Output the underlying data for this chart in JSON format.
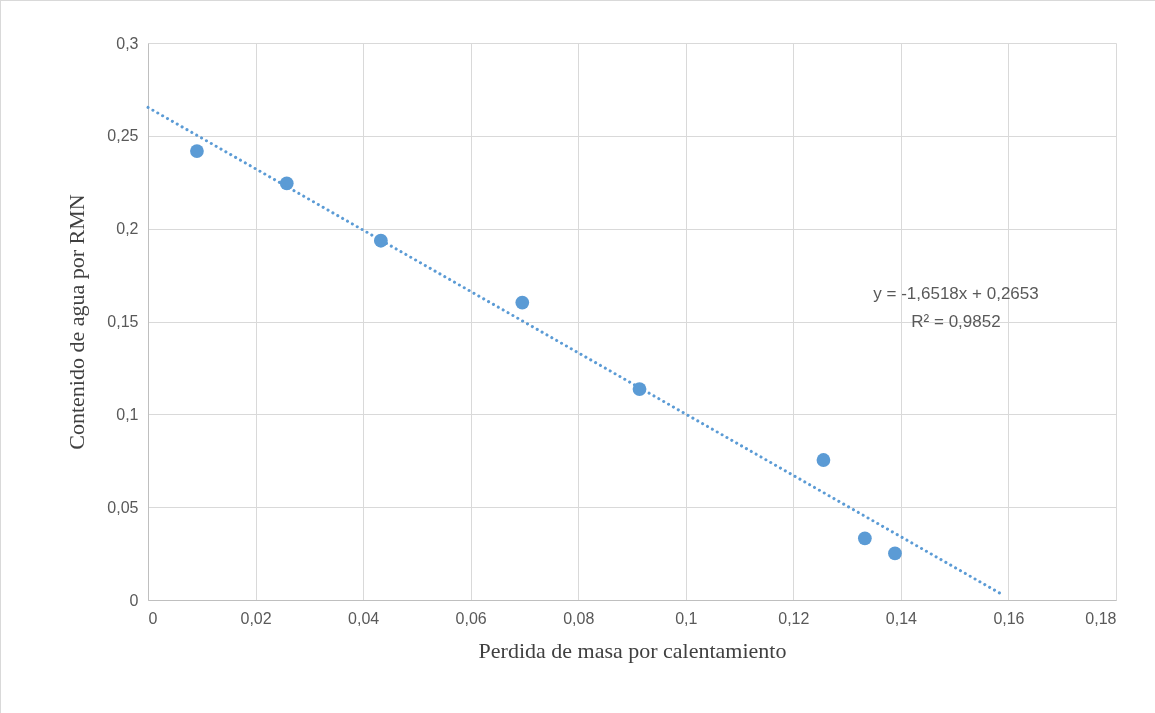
{
  "chart_data": {
    "type": "scatter",
    "xlabel": "Perdida de masa por calentamiento",
    "ylabel": "Contenido de agua por RMN",
    "xlim": [
      0,
      0.18
    ],
    "xticks": [
      0,
      {
        "value": 0.02,
        "label": "0,02"
      },
      {
        "value": 0.04,
        "label": "0,04"
      },
      {
        "value": 0.06,
        "label": "0,06"
      },
      {
        "value": 0.08,
        "label": "0,08"
      },
      {
        "value": 0.1,
        "label": "0,1"
      },
      {
        "value": 0.12,
        "label": "0,12"
      },
      {
        "value": 0.14,
        "label": "0,14"
      },
      {
        "value": 0.16,
        "label": "0,16"
      },
      {
        "value": 0.18,
        "label": "0,18"
      }
    ],
    "ylim": [
      0,
      0.3
    ],
    "yticks": [
      0,
      {
        "value": 0.05,
        "label": "0,05"
      },
      {
        "value": 0.1,
        "label": "0,1"
      },
      {
        "value": 0.15,
        "label": "0,15"
      },
      {
        "value": 0.2,
        "label": "0,2"
      },
      {
        "value": 0.25,
        "label": "0,25"
      },
      {
        "value": 0.3,
        "label": "0,3"
      }
    ],
    "grid": true,
    "marker": "circle",
    "annotations": [
      "y = -1,6518x + 0,2653",
      "R² = 0,9852"
    ],
    "series": [
      {
        "color": "#5b9bd5",
        "x": [
          0.0091,
          0.0258,
          0.0433,
          0.0696,
          0.0914,
          0.1256,
          0.1333,
          0.1389
        ],
        "values": [
          0.2418,
          0.2244,
          0.1935,
          0.1602,
          0.1136,
          0.0754,
          0.0332,
          0.0251
        ]
      },
      {
        "type": "line",
        "color": "#5b9bd5",
        "line_style": "dotted",
        "marker": "none",
        "x": [
          0,
          0.159
        ],
        "values": [
          0.2653,
          0.0027
        ]
      }
    ]
  }
}
